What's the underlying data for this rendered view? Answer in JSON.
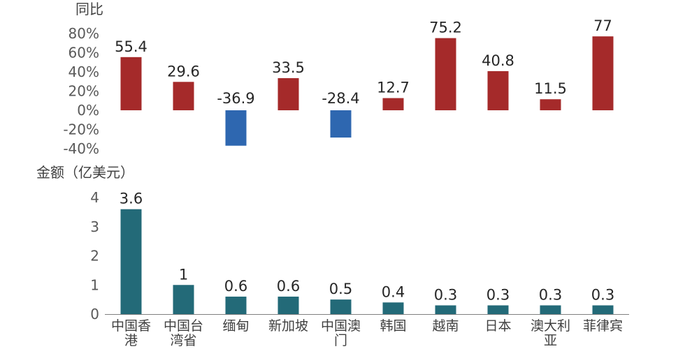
{
  "chart_data": [
    {
      "type": "bar",
      "ylabel": "同比",
      "categories": [
        "中国香港",
        "中国台湾省",
        "缅甸",
        "新加坡",
        "中国澳门",
        "韩国",
        "越南",
        "日本",
        "澳大利亚",
        "菲律宾"
      ],
      "category_lines": [
        [
          "中国香",
          "港"
        ],
        [
          "中国台",
          "湾省"
        ],
        [
          "缅甸"
        ],
        [
          "新加坡"
        ],
        [
          "中国澳",
          "门"
        ],
        [
          "韩国"
        ],
        [
          "越南"
        ],
        [
          "日本"
        ],
        [
          "澳大利",
          "亚"
        ],
        [
          "菲律宾"
        ]
      ],
      "values": [
        55.4,
        29.6,
        -36.9,
        33.5,
        -28.4,
        12.7,
        75.2,
        40.8,
        11.5,
        77
      ],
      "value_labels": [
        "55.4",
        "29.6",
        "-36.9",
        "33.5",
        "-28.4",
        "12.7",
        "75.2",
        "40.8",
        "11.5",
        "77"
      ],
      "ylim": [
        -40,
        80
      ],
      "yticks": [
        80,
        60,
        40,
        20,
        0,
        -20,
        -40
      ],
      "ytick_labels": [
        "80%",
        "60%",
        "40%",
        "20%",
        "0%",
        "-20%",
        "-40%"
      ],
      "grid": false,
      "colors": {
        "positive": "#A52A2A",
        "negative": "#2E67B0"
      }
    },
    {
      "type": "bar",
      "ylabel": "金额（亿美元）",
      "categories": [
        "中国香港",
        "中国台湾省",
        "缅甸",
        "新加坡",
        "中国澳门",
        "韩国",
        "越南",
        "日本",
        "澳大利亚",
        "菲律宾"
      ],
      "category_lines": [
        [
          "中国香",
          "港"
        ],
        [
          "中国台",
          "湾省"
        ],
        [
          "缅甸"
        ],
        [
          "新加坡"
        ],
        [
          "中国澳",
          "门"
        ],
        [
          "韩国"
        ],
        [
          "越南"
        ],
        [
          "日本"
        ],
        [
          "澳大利",
          "亚"
        ],
        [
          "菲律宾"
        ]
      ],
      "values": [
        3.6,
        1,
        0.6,
        0.6,
        0.5,
        0.4,
        0.3,
        0.3,
        0.3,
        0.3
      ],
      "value_labels": [
        "3.6",
        "1",
        "0.6",
        "0.6",
        "0.5",
        "0.4",
        "0.3",
        "0.3",
        "0.3",
        "0.3"
      ],
      "ylim": [
        0,
        4
      ],
      "yticks": [
        4,
        3,
        2,
        1,
        0
      ],
      "ytick_labels": [
        "4",
        "3",
        "2",
        "1",
        "0"
      ],
      "grid": false,
      "colors": {
        "bar": "#236A78"
      }
    }
  ]
}
